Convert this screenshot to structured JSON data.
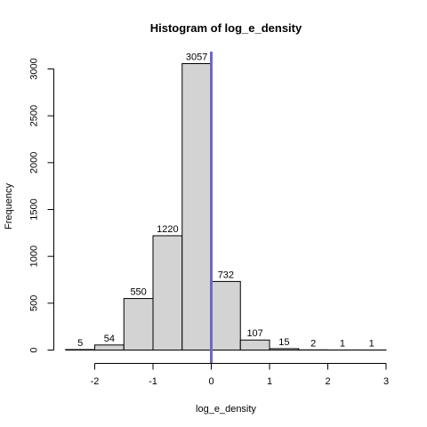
{
  "chart_data": {
    "type": "bar",
    "title": "Histogram of log_e_density",
    "xlabel": "log_e_density",
    "ylabel": "Frequency",
    "bins": [
      {
        "x0": -2.5,
        "x1": -2.0,
        "count": 5
      },
      {
        "x0": -2.0,
        "x1": -1.5,
        "count": 54
      },
      {
        "x0": -1.5,
        "x1": -1.0,
        "count": 550
      },
      {
        "x0": -1.0,
        "x1": -0.5,
        "count": 1220
      },
      {
        "x0": -0.5,
        "x1": 0.0,
        "count": 3057
      },
      {
        "x0": 0.0,
        "x1": 0.5,
        "count": 732
      },
      {
        "x0": 0.5,
        "x1": 1.0,
        "count": 107
      },
      {
        "x0": 1.0,
        "x1": 1.5,
        "count": 15
      },
      {
        "x0": 1.5,
        "x1": 2.0,
        "count": 2
      },
      {
        "x0": 2.0,
        "x1": 2.5,
        "count": 1
      },
      {
        "x0": 2.5,
        "x1": 3.0,
        "count": 1
      }
    ],
    "xticks": [
      -2,
      -1,
      0,
      1,
      2,
      3
    ],
    "yticks": [
      0,
      500,
      1000,
      1500,
      2000,
      2500,
      3000
    ],
    "xlim": [
      -2.5,
      3.0
    ],
    "ylim": [
      0,
      3057
    ],
    "vline": {
      "x": 0,
      "color": "#6b6bc4"
    },
    "bar_fill": "#d3d3d3",
    "bar_stroke": "#000000",
    "grid": false,
    "legend": "none"
  }
}
